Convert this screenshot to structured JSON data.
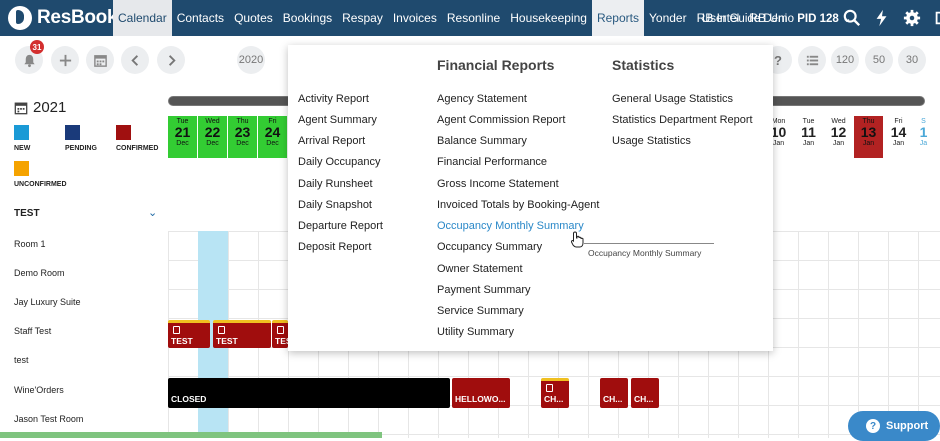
{
  "app": {
    "name": "ResBook"
  },
  "nav": {
    "items": [
      "Calendar",
      "Contacts",
      "Quotes",
      "Bookings",
      "Respay",
      "Invoices",
      "Resonline",
      "Housekeeping",
      "Reports",
      "Yonder",
      "RB Intel",
      "RB Uni"
    ],
    "user": "User Guide Demo",
    "pid": "PID 128"
  },
  "toolbar": {
    "notifications": "31",
    "year_pills": [
      "2020",
      "120",
      "50",
      "30"
    ],
    "help": "?"
  },
  "calendar": {
    "year": "2021",
    "legend": [
      {
        "label": "NEW",
        "color": "#1a9ad6"
      },
      {
        "label": "PENDING",
        "color": "#1a3a7a"
      },
      {
        "label": "CONFIRMED",
        "color": "#a01010"
      },
      {
        "label": "UNCONFIRMED",
        "color": "#f5a300"
      }
    ],
    "days_left": [
      {
        "dow": "Tue",
        "d": "21",
        "m": "Dec"
      },
      {
        "dow": "Wed",
        "d": "22",
        "m": "Dec"
      },
      {
        "dow": "Thu",
        "d": "23",
        "m": "Dec"
      },
      {
        "dow": "Fri",
        "d": "24",
        "m": "Dec"
      }
    ],
    "days_right": [
      {
        "dow": "Mon",
        "d": "10",
        "m": "Jan"
      },
      {
        "dow": "Tue",
        "d": "11",
        "m": "Jan"
      },
      {
        "dow": "Wed",
        "d": "12",
        "m": "Jan"
      },
      {
        "dow": "Thu",
        "d": "13",
        "m": "Jan"
      },
      {
        "dow": "Fri",
        "d": "14",
        "m": "Jan"
      },
      {
        "dow": "S",
        "d": "1",
        "m": "Ja"
      }
    ],
    "group": "TEST",
    "rooms": [
      "Room 1",
      "Demo Room",
      "Jay Luxury Suite",
      "Staff Test",
      "test",
      "Wine'Orders",
      "Jason Test Room"
    ],
    "bookings": {
      "t1": "TEST",
      "t2": "TEST",
      "t3": "TES",
      "closed": "CLOSED",
      "hello": "HELLOWO...",
      "ch1": "CH...",
      "ch2": "CH...",
      "ch3": "CH..."
    }
  },
  "reports_menu": {
    "col1": [
      "Activity Report",
      "Agent Summary",
      "Arrival Report",
      "Daily Occupancy",
      "Daily Runsheet",
      "Daily Snapshot",
      "Departure Report",
      "Deposit Report"
    ],
    "financial_heading": "Financial Reports",
    "col2": [
      "Agency Statement",
      "Agent Commission Report",
      "Balance Summary",
      "Financial Performance",
      "Gross Income Statement",
      "Invoiced Totals by Booking-Agent",
      "Occupancy Monthly Summary",
      "Occupancy Summary",
      "Owner Statement",
      "Payment Summary",
      "Service Summary",
      "Utility Summary"
    ],
    "statistics_heading": "Statistics",
    "col3": [
      "General Usage Statistics",
      "Statistics Department Report",
      "Usage Statistics"
    ],
    "tooltip": "Occupancy Monthly Summary"
  },
  "support": "Support"
}
